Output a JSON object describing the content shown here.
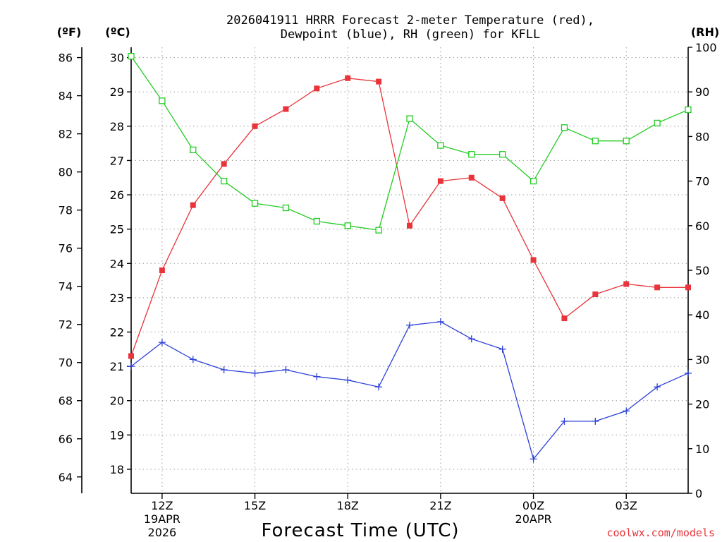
{
  "chart_data": {
    "type": "line",
    "title_line1": "2026041911 HRRR Forecast 2-meter Temperature (red),",
    "title_line2": "Dewpoint (blue), RH (green) for KFLL",
    "xlabel": "Forecast Time (UTC)",
    "credit": "coolwx.com/models",
    "unit_labels": {
      "fahrenheit": "(ºF)",
      "celsius": "(ºC)",
      "rh": "(RH)"
    },
    "x": [
      11,
      12,
      13,
      14,
      15,
      16,
      17,
      18,
      19,
      20,
      21,
      22,
      23,
      24,
      25,
      26,
      27,
      28,
      29
    ],
    "xlim": [
      11,
      29
    ],
    "x_ticks": [
      {
        "x": 12,
        "label": "12Z",
        "sub1": "19APR",
        "sub2": "2026"
      },
      {
        "x": 15,
        "label": "15Z",
        "sub1": "",
        "sub2": ""
      },
      {
        "x": 18,
        "label": "18Z",
        "sub1": "",
        "sub2": ""
      },
      {
        "x": 21,
        "label": "21Z",
        "sub1": "",
        "sub2": ""
      },
      {
        "x": 24,
        "label": "00Z",
        "sub1": "20APR",
        "sub2": ""
      },
      {
        "x": 27,
        "label": "03Z",
        "sub1": "",
        "sub2": ""
      }
    ],
    "celsius_axis": {
      "ylim": [
        17.3,
        30.3
      ],
      "ticks": [
        18,
        19,
        20,
        21,
        22,
        23,
        24,
        25,
        26,
        27,
        28,
        29,
        30
      ]
    },
    "fahrenheit_axis": {
      "ticks": [
        64,
        66,
        68,
        70,
        72,
        74,
        76,
        78,
        80,
        82,
        84,
        86
      ]
    },
    "rh_axis": {
      "ylim": [
        0,
        100
      ],
      "ticks": [
        0,
        10,
        20,
        30,
        40,
        50,
        60,
        70,
        80,
        90,
        100
      ]
    },
    "series": [
      {
        "name": "Temperature",
        "units": "C",
        "axis": "celsius",
        "color": "#e8343a",
        "marker": "filled-square",
        "values": [
          21.3,
          23.8,
          25.7,
          26.9,
          28.0,
          28.5,
          29.1,
          29.4,
          29.3,
          25.1,
          26.4,
          26.5,
          25.9,
          24.1,
          22.4,
          23.1,
          23.4,
          23.3,
          23.3
        ]
      },
      {
        "name": "Dewpoint",
        "units": "C",
        "axis": "celsius",
        "color": "#2b3fd8",
        "marker": "plus",
        "values": [
          21.0,
          21.7,
          21.2,
          20.9,
          20.8,
          20.9,
          20.7,
          20.6,
          20.4,
          22.2,
          22.3,
          21.8,
          21.5,
          18.3,
          19.4,
          19.4,
          19.7,
          20.4,
          20.8
        ]
      },
      {
        "name": "RH",
        "units": "%",
        "axis": "rh",
        "color": "#22cc22",
        "marker": "open-square",
        "values": [
          98,
          88,
          77,
          70,
          65,
          64,
          61,
          60,
          59,
          84,
          78,
          76,
          76,
          70,
          82,
          79,
          79,
          83,
          86
        ]
      }
    ]
  }
}
